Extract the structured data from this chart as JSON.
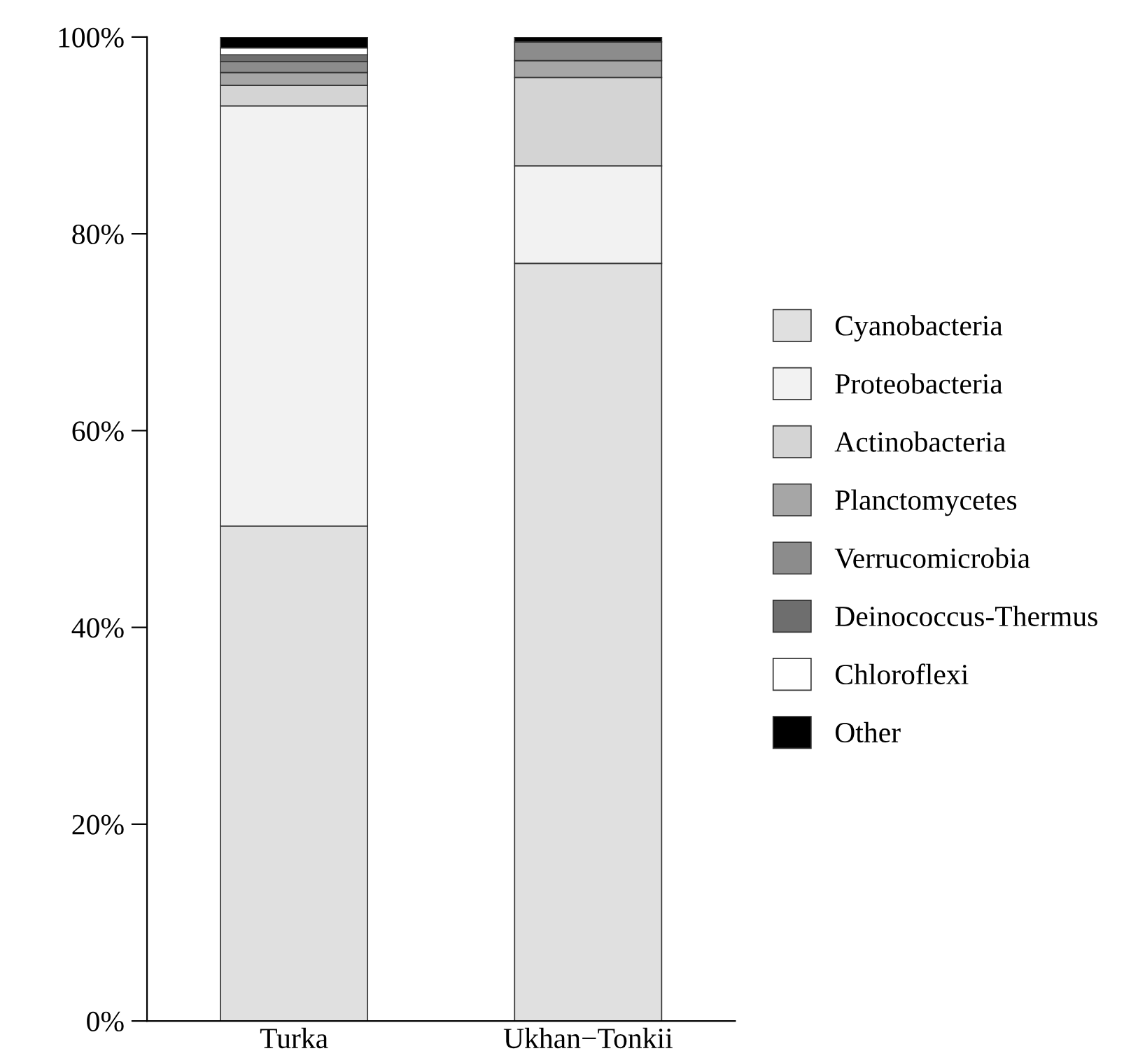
{
  "chart_data": {
    "type": "bar",
    "stacked": true,
    "categories": [
      "Turka",
      "Ukhan−Tonkii"
    ],
    "series": [
      {
        "name": "Cyanobacteria",
        "color": "#e0e0e0",
        "values": [
          50.3,
          77.0
        ]
      },
      {
        "name": "Proteobacteria",
        "color": "#f2f2f2",
        "values": [
          42.7,
          9.9
        ]
      },
      {
        "name": "Actinobacteria",
        "color": "#d4d4d4",
        "values": [
          2.1,
          9.0
        ]
      },
      {
        "name": "Planctomycetes",
        "color": "#a6a6a6",
        "values": [
          1.3,
          1.7
        ]
      },
      {
        "name": "Verrucomicrobia",
        "color": "#8c8c8c",
        "values": [
          1.1,
          1.9
        ]
      },
      {
        "name": "Deinococcus-Thermus",
        "color": "#6e6e6e",
        "values": [
          0.7,
          0
        ]
      },
      {
        "name": "Chloroflexi",
        "color": "#ffffff",
        "values": [
          0.7,
          0
        ]
      },
      {
        "name": "Other",
        "color": "#000000",
        "values": [
          1.1,
          0.5
        ]
      }
    ],
    "ylim": [
      0,
      100
    ],
    "yticks": [
      {
        "value": 0,
        "label": "0%"
      },
      {
        "value": 20,
        "label": "20%"
      },
      {
        "value": 40,
        "label": "40%"
      },
      {
        "value": 60,
        "label": "60%"
      },
      {
        "value": 80,
        "label": "80%"
      },
      {
        "value": 100,
        "label": "100%"
      }
    ],
    "legend": "right",
    "grid": false
  }
}
